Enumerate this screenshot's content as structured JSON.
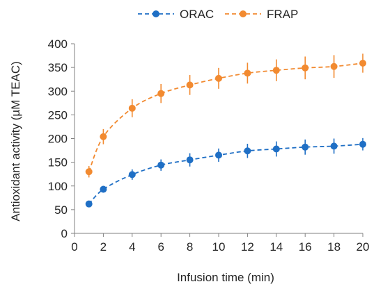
{
  "chart_data": {
    "type": "line",
    "xlabel": "Infusion time (min)",
    "ylabel": "Antioxidant activity (µM TEAC)",
    "xlim": [
      0,
      20
    ],
    "ylim": [
      0,
      400
    ],
    "x_ticks": [
      0,
      2,
      4,
      6,
      8,
      10,
      12,
      14,
      16,
      18,
      20
    ],
    "y_ticks": [
      0,
      50,
      100,
      150,
      200,
      250,
      300,
      350,
      400
    ],
    "grid": false,
    "legend_position": "top-center",
    "x": [
      1,
      2,
      4,
      6,
      8,
      10,
      12,
      14,
      16,
      18,
      20
    ],
    "series": [
      {
        "name": "ORAC",
        "color": "#1f6fc5",
        "line_style": "dashed",
        "marker": "circle",
        "values": [
          62,
          93,
          124,
          144,
          155,
          165,
          174,
          178,
          182,
          184,
          188
        ],
        "errors": [
          4,
          7,
          11,
          12,
          14,
          14,
          15,
          16,
          16,
          16,
          13
        ]
      },
      {
        "name": "FRAP",
        "color": "#f28a30",
        "line_style": "dashed",
        "marker": "circle",
        "values": [
          130,
          204,
          264,
          295,
          313,
          327,
          338,
          344,
          349,
          352,
          359
        ],
        "errors": [
          12,
          16,
          19,
          20,
          21,
          22,
          22,
          23,
          24,
          24,
          20
        ]
      }
    ]
  }
}
